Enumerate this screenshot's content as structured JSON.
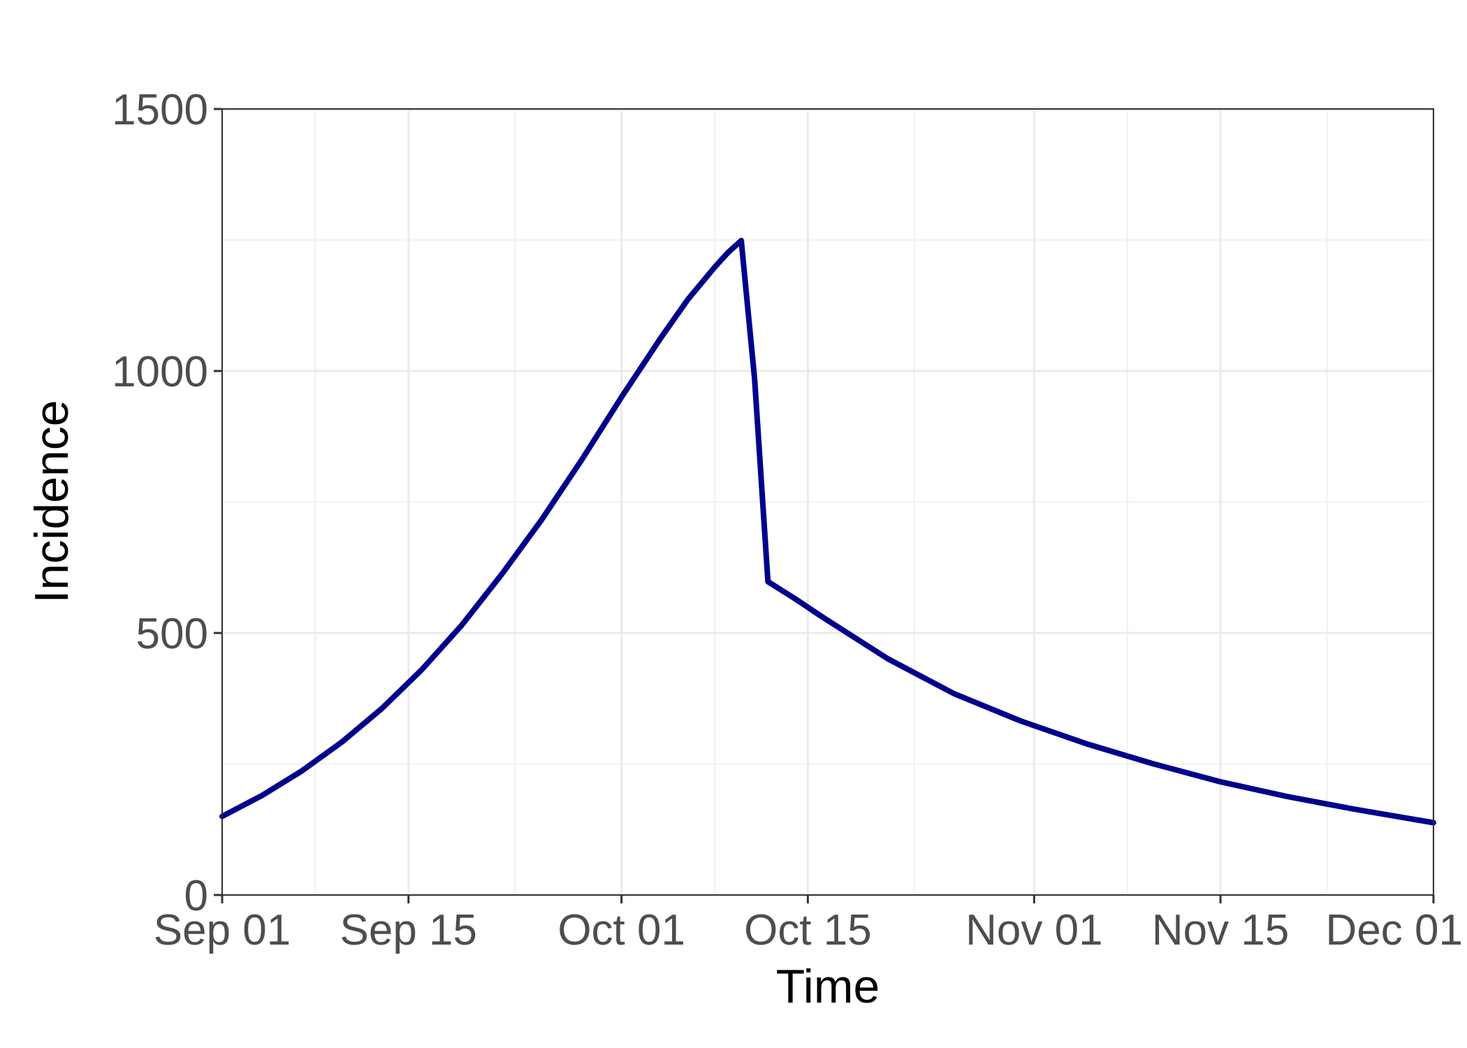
{
  "chart_data": {
    "type": "line",
    "title": "",
    "xlabel": "Time",
    "ylabel": "Incidence",
    "xlim_days": [
      0,
      91
    ],
    "ylim": [
      0,
      1500
    ],
    "x_ticks": [
      {
        "label": "Sep 01",
        "day": 0
      },
      {
        "label": "Sep 15",
        "day": 14
      },
      {
        "label": "Oct 01",
        "day": 30
      },
      {
        "label": "Oct 15",
        "day": 44
      },
      {
        "label": "Nov 01",
        "day": 61
      },
      {
        "label": "Nov 15",
        "day": 75
      },
      {
        "label": "Dec 01",
        "day": 91
      }
    ],
    "x_minor_days": [
      7,
      22,
      37,
      52,
      68,
      83
    ],
    "y_ticks": [
      0,
      500,
      1000,
      1500
    ],
    "y_minor": [
      250,
      750,
      1250
    ],
    "grid": true,
    "series": [
      {
        "name": "Incidence",
        "color": "#00008B",
        "x": [
          0,
          3,
          6,
          9,
          12,
          15,
          18,
          21,
          24,
          27,
          30,
          33,
          35,
          37,
          38,
          39,
          40,
          41,
          43,
          45,
          50,
          55,
          60,
          65,
          70,
          75,
          80,
          85,
          91
        ],
        "values": [
          150,
          190,
          237,
          292,
          356,
          430,
          515,
          612,
          716,
          830,
          950,
          1065,
          1137,
          1198,
          1226,
          1249,
          985,
          598,
          566,
          532,
          451,
          384,
          332,
          288,
          250,
          216,
          188,
          164,
          138
        ]
      }
    ]
  }
}
